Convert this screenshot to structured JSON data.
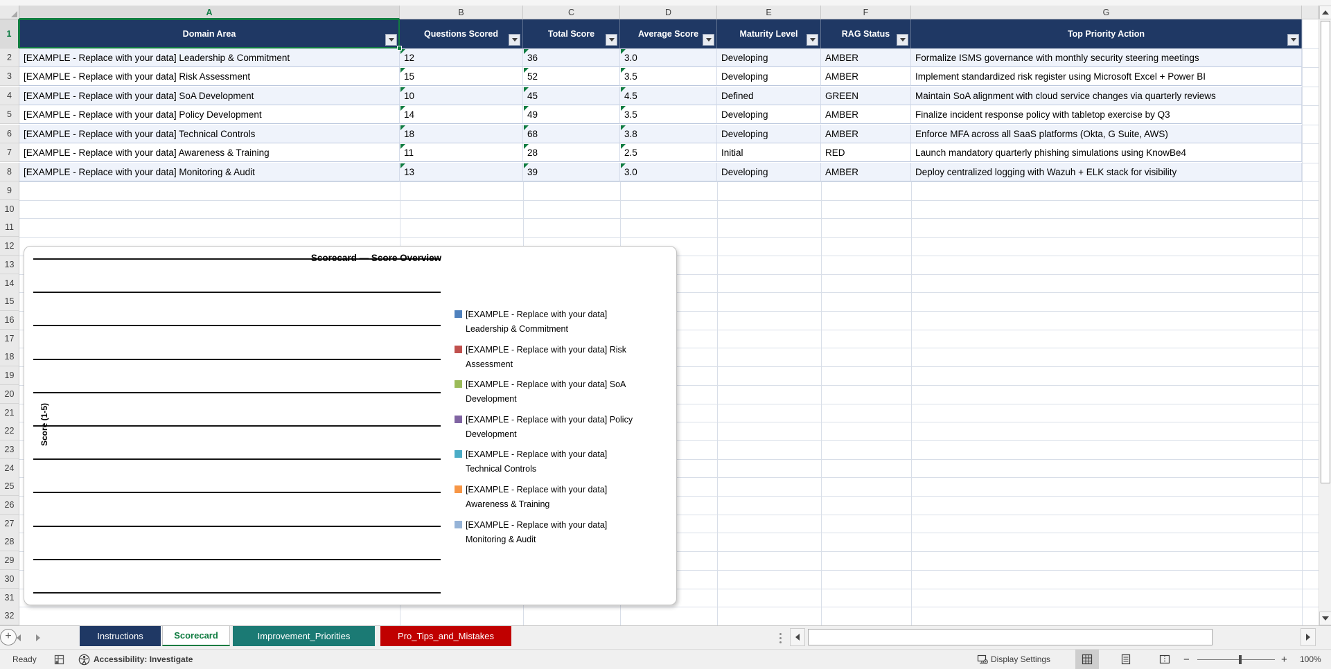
{
  "grid": {
    "column_letters": [
      "A",
      "B",
      "C",
      "D",
      "E",
      "F",
      "G"
    ],
    "row_numbers": {
      "first": 1,
      "last": 32
    },
    "selected_cell": "A1"
  },
  "table": {
    "columns": [
      "Domain Area",
      "Questions Scored",
      "Total Score",
      "Average Score",
      "Maturity Level",
      "RAG Status",
      "Top Priority Action"
    ],
    "rows": [
      {
        "domain_area": "[EXAMPLE - Replace with your data] Leadership & Commitment",
        "questions_scored": "12",
        "total_score": "36",
        "average_score": "3.0",
        "maturity_level": "Developing",
        "rag_status": "AMBER",
        "top_priority_action": "Formalize ISMS governance with monthly security steering meetings"
      },
      {
        "domain_area": "[EXAMPLE - Replace with your data] Risk Assessment",
        "questions_scored": "15",
        "total_score": "52",
        "average_score": "3.5",
        "maturity_level": "Developing",
        "rag_status": "AMBER",
        "top_priority_action": "Implement standardized risk register using Microsoft Excel + Power BI"
      },
      {
        "domain_area": "[EXAMPLE - Replace with your data] SoA Development",
        "questions_scored": "10",
        "total_score": "45",
        "average_score": "4.5",
        "maturity_level": "Defined",
        "rag_status": "GREEN",
        "top_priority_action": "Maintain SoA alignment with cloud service changes via quarterly reviews"
      },
      {
        "domain_area": "[EXAMPLE - Replace with your data] Policy Development",
        "questions_scored": "14",
        "total_score": "49",
        "average_score": "3.5",
        "maturity_level": "Developing",
        "rag_status": "AMBER",
        "top_priority_action": "Finalize incident response policy with tabletop exercise by Q3"
      },
      {
        "domain_area": "[EXAMPLE - Replace with your data] Technical Controls",
        "questions_scored": "18",
        "total_score": "68",
        "average_score": "3.8",
        "maturity_level": "Developing",
        "rag_status": "AMBER",
        "top_priority_action": "Enforce MFA across all SaaS platforms (Okta, G Suite, AWS)"
      },
      {
        "domain_area": "[EXAMPLE - Replace with your data] Awareness & Training",
        "questions_scored": "11",
        "total_score": "28",
        "average_score": "2.5",
        "maturity_level": "Initial",
        "rag_status": "RED",
        "top_priority_action": "Launch mandatory quarterly phishing simulations using KnowBe4"
      },
      {
        "domain_area": "[EXAMPLE - Replace with your data] Monitoring & Audit",
        "questions_scored": "13",
        "total_score": "39",
        "average_score": "3.0",
        "maturity_level": "Developing",
        "rag_status": "AMBER",
        "top_priority_action": "Deploy centralized logging with Wazuh + ELK stack for visibility"
      }
    ]
  },
  "chart": {
    "title": "Scorecard — Score Overview",
    "y_axis_title": "Score (1-5)",
    "legend": [
      {
        "color": "#4F81BD",
        "line1": "[EXAMPLE - Replace with your data]",
        "line2": "Leadership & Commitment"
      },
      {
        "color": "#C0504D",
        "line1": "[EXAMPLE - Replace with your data] Risk",
        "line2": "Assessment"
      },
      {
        "color": "#9BBB59",
        "line1": "[EXAMPLE - Replace with your data] SoA",
        "line2": "Development"
      },
      {
        "color": "#8064A2",
        "line1": "[EXAMPLE - Replace with your data] Policy",
        "line2": "Development"
      },
      {
        "color": "#4BACC6",
        "line1": "[EXAMPLE - Replace with your data]",
        "line2": "Technical Controls"
      },
      {
        "color": "#F79646",
        "line1": "[EXAMPLE - Replace with your data]",
        "line2": "Awareness & Training"
      },
      {
        "color": "#95B3D7",
        "line1": "[EXAMPLE - Replace with your data]",
        "line2": "Monitoring & Audit"
      }
    ]
  },
  "chart_data": {
    "type": "bar",
    "title": "Scorecard — Score Overview",
    "xlabel": "",
    "ylabel": "Score (1-5)",
    "ylim": [
      0,
      5
    ],
    "gridlines": true,
    "gridline_count": 11,
    "legend_position": "right",
    "series": [
      {
        "name": "[EXAMPLE - Replace with your data] Leadership & Commitment",
        "values": []
      },
      {
        "name": "[EXAMPLE - Replace with your data] Risk Assessment",
        "values": []
      },
      {
        "name": "[EXAMPLE - Replace with your data] SoA Development",
        "values": []
      },
      {
        "name": "[EXAMPLE - Replace with your data] Policy Development",
        "values": []
      },
      {
        "name": "[EXAMPLE - Replace with your data] Technical Controls",
        "values": []
      },
      {
        "name": "[EXAMPLE - Replace with your data] Awareness & Training",
        "values": []
      },
      {
        "name": "[EXAMPLE - Replace with your data] Monitoring & Audit",
        "values": []
      }
    ]
  },
  "sheet_tabs": {
    "items": [
      {
        "label": "Instructions",
        "bg": "#1F3864",
        "text": "#FFFFFF",
        "active": false
      },
      {
        "label": "Scorecard",
        "bg": "#FFFFFF",
        "text": "#107C41",
        "active": true
      },
      {
        "label": "Improvement_Priorities",
        "bg": "#1B7A74",
        "text": "#FFFFFF",
        "active": false
      },
      {
        "label": "Pro_Tips_and_Mistakes",
        "bg": "#C00000",
        "text": "#FFFFFF",
        "active": false
      }
    ]
  },
  "status_bar": {
    "ready": "Ready",
    "accessibility": "Accessibility: Investigate",
    "display_settings": "Display Settings",
    "zoom": "100%"
  },
  "colors": {
    "header_bg": "#1F3864",
    "selection_green": "#107C41",
    "banded_row": "#EFF3FB"
  }
}
